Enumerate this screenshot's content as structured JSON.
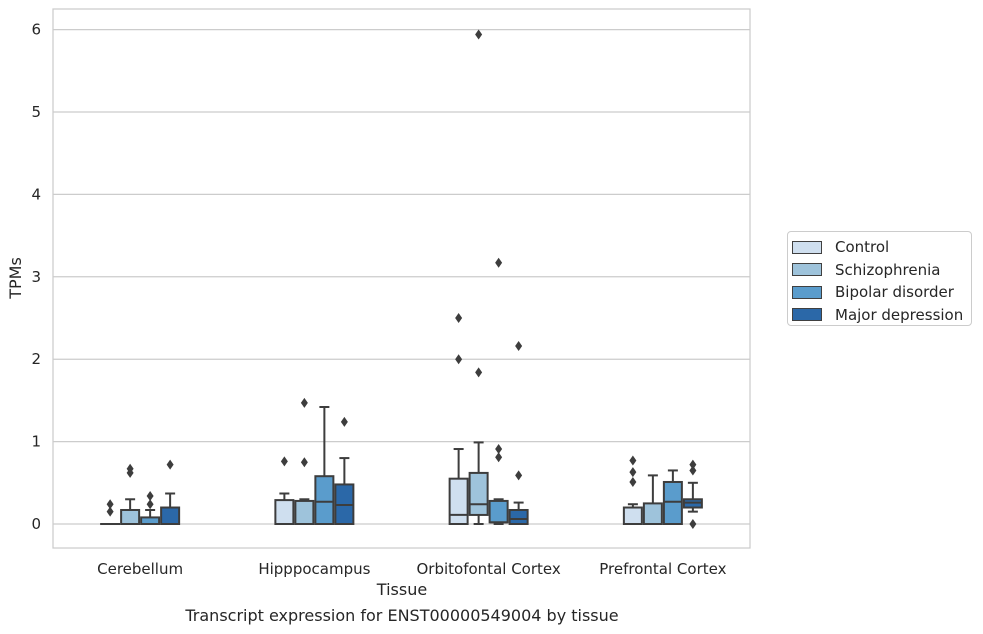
{
  "caption": "Transcript expression for ENST00000549004 by tissue",
  "chart_data": {
    "type": "box",
    "xlabel": "Tissue",
    "ylabel": "TPMs",
    "ylim": [
      -0.3,
      6.25
    ],
    "yticks": [
      0,
      1,
      2,
      3,
      4,
      5,
      6
    ],
    "grid": "y",
    "legend_position": "right",
    "categories": [
      "Cerebellum",
      "Hipppocampus",
      "Orbitofontal Cortex",
      "Prefrontal Cortex"
    ],
    "series": [
      {
        "name": "Control",
        "color": "#cfdfef",
        "boxes": [
          {
            "q1": 0.0,
            "median": 0.0,
            "q3": 0.0,
            "whisker_low": 0.0,
            "whisker_high": 0.0,
            "outliers": [
              0.15,
              0.24
            ]
          },
          {
            "q1": 0.0,
            "median": 0.0,
            "q3": 0.29,
            "whisker_low": 0.0,
            "whisker_high": 0.37,
            "outliers": [
              0.76
            ]
          },
          {
            "q1": 0.0,
            "median": 0.11,
            "q3": 0.55,
            "whisker_low": 0.0,
            "whisker_high": 0.91,
            "outliers": [
              2.0,
              2.5
            ]
          },
          {
            "q1": 0.0,
            "median": 0.0,
            "q3": 0.2,
            "whisker_low": 0.0,
            "whisker_high": 0.24,
            "outliers": [
              0.51,
              0.63,
              0.77
            ]
          }
        ]
      },
      {
        "name": "Schizophrenia",
        "color": "#9ec3db",
        "boxes": [
          {
            "q1": 0.0,
            "median": 0.0,
            "q3": 0.17,
            "whisker_low": 0.0,
            "whisker_high": 0.3,
            "outliers": [
              0.62,
              0.67
            ]
          },
          {
            "q1": 0.0,
            "median": 0.0,
            "q3": 0.28,
            "whisker_low": 0.0,
            "whisker_high": 0.3,
            "outliers": [
              0.75,
              1.47
            ]
          },
          {
            "q1": 0.11,
            "median": 0.24,
            "q3": 0.62,
            "whisker_low": 0.0,
            "whisker_high": 0.99,
            "outliers": [
              1.84,
              5.94
            ]
          },
          {
            "q1": 0.0,
            "median": 0.0,
            "q3": 0.25,
            "whisker_low": 0.0,
            "whisker_high": 0.59,
            "outliers": []
          }
        ]
      },
      {
        "name": "Bipolar disorder",
        "color": "#5a9ccc",
        "boxes": [
          {
            "q1": 0.0,
            "median": 0.0,
            "q3": 0.08,
            "whisker_low": 0.0,
            "whisker_high": 0.17,
            "outliers": [
              0.24,
              0.34
            ]
          },
          {
            "q1": 0.0,
            "median": 0.27,
            "q3": 0.58,
            "whisker_low": 0.0,
            "whisker_high": 1.42,
            "outliers": []
          },
          {
            "q1": 0.02,
            "median": 0.02,
            "q3": 0.28,
            "whisker_low": 0.0,
            "whisker_high": 0.3,
            "outliers": [
              0.81,
              0.91,
              3.17
            ]
          },
          {
            "q1": 0.0,
            "median": 0.27,
            "q3": 0.51,
            "whisker_low": 0.0,
            "whisker_high": 0.65,
            "outliers": []
          }
        ]
      },
      {
        "name": "Major depression",
        "color": "#2b68a8",
        "boxes": [
          {
            "q1": 0.0,
            "median": 0.0,
            "q3": 0.2,
            "whisker_low": 0.0,
            "whisker_high": 0.37,
            "outliers": [
              0.72
            ]
          },
          {
            "q1": 0.0,
            "median": 0.23,
            "q3": 0.48,
            "whisker_low": 0.0,
            "whisker_high": 0.8,
            "outliers": [
              1.24
            ]
          },
          {
            "q1": 0.0,
            "median": 0.06,
            "q3": 0.17,
            "whisker_low": 0.0,
            "whisker_high": 0.26,
            "outliers": [
              0.59,
              2.16
            ]
          },
          {
            "q1": 0.2,
            "median": 0.26,
            "q3": 0.3,
            "whisker_low": 0.15,
            "whisker_high": 0.5,
            "outliers": [
              0.0,
              0.65,
              0.72
            ]
          }
        ]
      }
    ]
  }
}
